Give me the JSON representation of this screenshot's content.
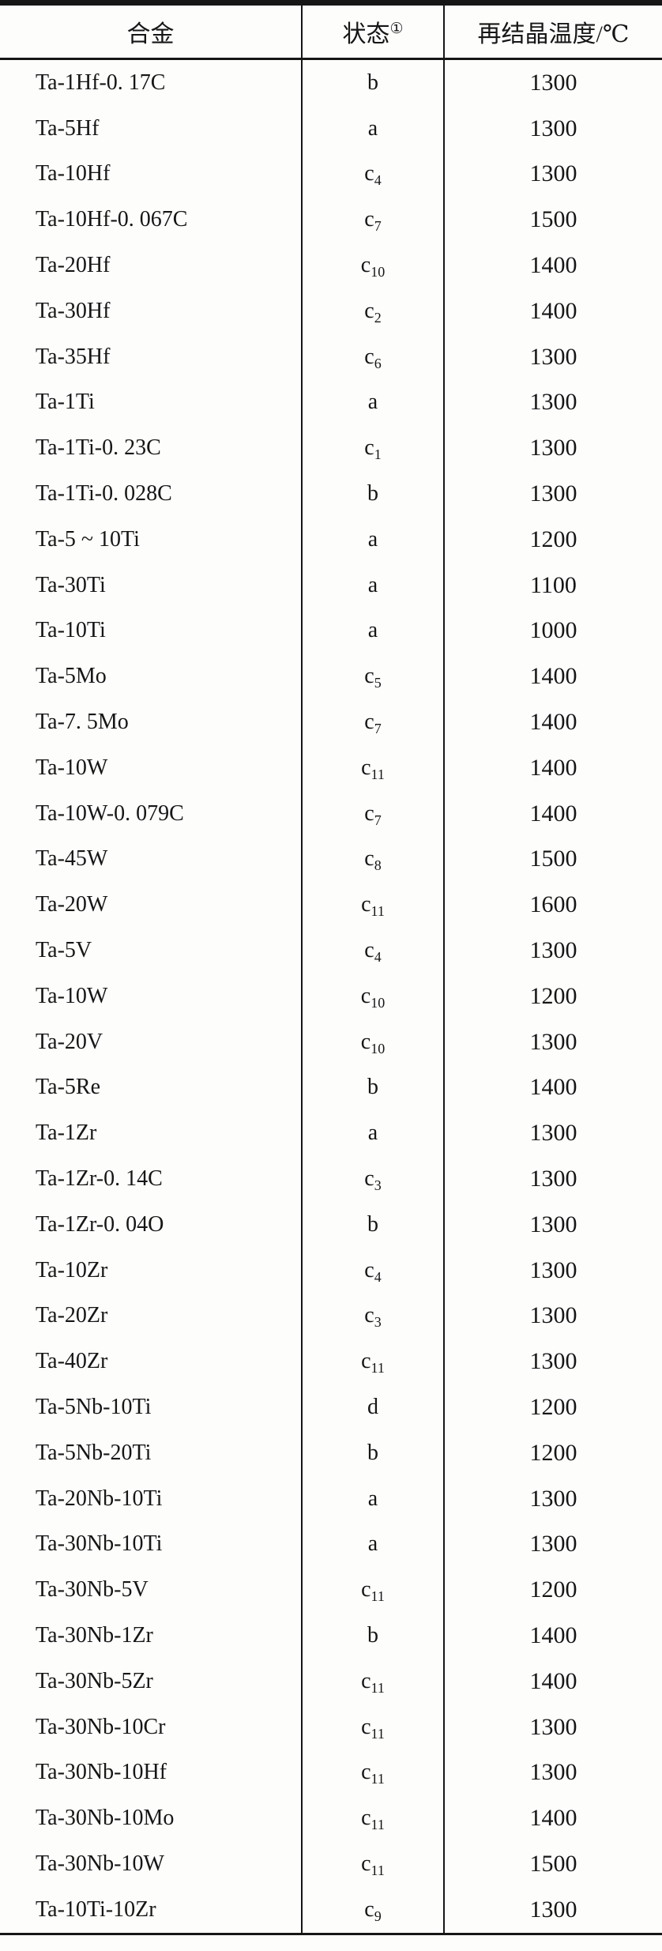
{
  "colors": {
    "background": "#fdfdfc",
    "rule": "#161616",
    "text": "#161616"
  },
  "table": {
    "headers": {
      "alloy": "合金",
      "state": "状态",
      "state_note": "①",
      "temp": "再结晶温度/℃"
    },
    "rows": [
      {
        "alloy": "Ta-1Hf-0. 17C",
        "state_base": "b",
        "state_sub": "",
        "temp": "1300"
      },
      {
        "alloy": "Ta-5Hf",
        "state_base": "a",
        "state_sub": "",
        "temp": "1300"
      },
      {
        "alloy": "Ta-10Hf",
        "state_base": "c",
        "state_sub": "4",
        "temp": "1300"
      },
      {
        "alloy": "Ta-10Hf-0. 067C",
        "state_base": "c",
        "state_sub": "7",
        "temp": "1500"
      },
      {
        "alloy": "Ta-20Hf",
        "state_base": "c",
        "state_sub": "10",
        "temp": "1400"
      },
      {
        "alloy": "Ta-30Hf",
        "state_base": "c",
        "state_sub": "2",
        "temp": "1400"
      },
      {
        "alloy": "Ta-35Hf",
        "state_base": "c",
        "state_sub": "6",
        "temp": "1300"
      },
      {
        "alloy": "Ta-1Ti",
        "state_base": "a",
        "state_sub": "",
        "temp": "1300"
      },
      {
        "alloy": "Ta-1Ti-0. 23C",
        "state_base": "c",
        "state_sub": "1",
        "temp": "1300"
      },
      {
        "alloy": "Ta-1Ti-0. 028C",
        "state_base": "b",
        "state_sub": "",
        "temp": "1300"
      },
      {
        "alloy": "Ta-5 ~ 10Ti",
        "state_base": "a",
        "state_sub": "",
        "temp": "1200"
      },
      {
        "alloy": "Ta-30Ti",
        "state_base": "a",
        "state_sub": "",
        "temp": "1100"
      },
      {
        "alloy": "Ta-10Ti",
        "state_base": "a",
        "state_sub": "",
        "temp": "1000"
      },
      {
        "alloy": "Ta-5Mo",
        "state_base": "c",
        "state_sub": "5",
        "temp": "1400"
      },
      {
        "alloy": "Ta-7. 5Mo",
        "state_base": "c",
        "state_sub": "7",
        "temp": "1400"
      },
      {
        "alloy": "Ta-10W",
        "state_base": "c",
        "state_sub": "11",
        "temp": "1400"
      },
      {
        "alloy": "Ta-10W-0. 079C",
        "state_base": "c",
        "state_sub": "7",
        "temp": "1400"
      },
      {
        "alloy": "Ta-45W",
        "state_base": "c",
        "state_sub": "8",
        "temp": "1500"
      },
      {
        "alloy": "Ta-20W",
        "state_base": "c",
        "state_sub": "11",
        "temp": "1600"
      },
      {
        "alloy": "Ta-5V",
        "state_base": "c",
        "state_sub": "4",
        "temp": "1300"
      },
      {
        "alloy": "Ta-10W",
        "state_base": "c",
        "state_sub": "10",
        "temp": "1200"
      },
      {
        "alloy": "Ta-20V",
        "state_base": "c",
        "state_sub": "10",
        "temp": "1300"
      },
      {
        "alloy": "Ta-5Re",
        "state_base": "b",
        "state_sub": "",
        "temp": "1400"
      },
      {
        "alloy": "Ta-1Zr",
        "state_base": "a",
        "state_sub": "",
        "temp": "1300"
      },
      {
        "alloy": "Ta-1Zr-0. 14C",
        "state_base": "c",
        "state_sub": "3",
        "temp": "1300"
      },
      {
        "alloy": "Ta-1Zr-0. 04O",
        "state_base": "b",
        "state_sub": "",
        "temp": "1300"
      },
      {
        "alloy": "Ta-10Zr",
        "state_base": "c",
        "state_sub": "4",
        "temp": "1300"
      },
      {
        "alloy": "Ta-20Zr",
        "state_base": "c",
        "state_sub": "3",
        "temp": "1300"
      },
      {
        "alloy": "Ta-40Zr",
        "state_base": "c",
        "state_sub": "11",
        "temp": "1300"
      },
      {
        "alloy": "Ta-5Nb-10Ti",
        "state_base": "d",
        "state_sub": "",
        "temp": "1200"
      },
      {
        "alloy": "Ta-5Nb-20Ti",
        "state_base": "b",
        "state_sub": "",
        "temp": "1200"
      },
      {
        "alloy": "Ta-20Nb-10Ti",
        "state_base": "a",
        "state_sub": "",
        "temp": "1300"
      },
      {
        "alloy": "Ta-30Nb-10Ti",
        "state_base": "a",
        "state_sub": "",
        "temp": "1300"
      },
      {
        "alloy": "Ta-30Nb-5V",
        "state_base": "c",
        "state_sub": "11",
        "temp": "1200"
      },
      {
        "alloy": "Ta-30Nb-1Zr",
        "state_base": "b",
        "state_sub": "",
        "temp": "1400"
      },
      {
        "alloy": "Ta-30Nb-5Zr",
        "state_base": "c",
        "state_sub": "11",
        "temp": "1400"
      },
      {
        "alloy": "Ta-30Nb-10Cr",
        "state_base": "c",
        "state_sub": "11",
        "temp": "1300"
      },
      {
        "alloy": "Ta-30Nb-10Hf",
        "state_base": "c",
        "state_sub": "11",
        "temp": "1300"
      },
      {
        "alloy": "Ta-30Nb-10Mo",
        "state_base": "c",
        "state_sub": "11",
        "temp": "1400"
      },
      {
        "alloy": "Ta-30Nb-10W",
        "state_base": "c",
        "state_sub": "11",
        "temp": "1500"
      },
      {
        "alloy": "Ta-10Ti-10Zr",
        "state_base": "c",
        "state_sub": "9",
        "temp": "1300"
      }
    ]
  }
}
